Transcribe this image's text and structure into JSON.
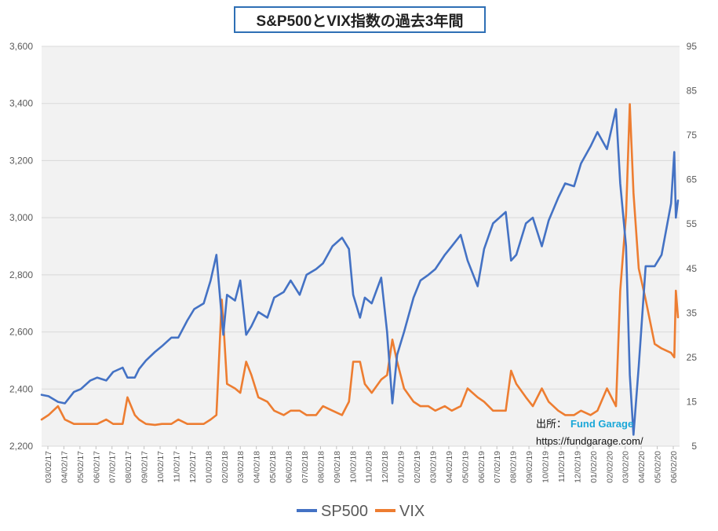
{
  "chart_data": {
    "type": "line",
    "title": "S&P500とVIX指数の過去3年間",
    "y_left": {
      "ylim": [
        2200,
        3600
      ],
      "ticks": [
        "2,200",
        "2,400",
        "2,600",
        "2,800",
        "3,000",
        "3,200",
        "3,400",
        "3,600"
      ]
    },
    "y_right": {
      "ylim": [
        5,
        95
      ],
      "ticks": [
        "5",
        "15",
        "25",
        "35",
        "45",
        "55",
        "65",
        "75",
        "85",
        "95"
      ]
    },
    "grid": true,
    "legend_position": "bottom",
    "x_tick_labels": [
      "03/02/17",
      "04/02/17",
      "05/02/17",
      "06/02/17",
      "07/02/17",
      "08/02/17",
      "09/02/17",
      "10/02/17",
      "11/02/17",
      "12/02/17",
      "01/02/18",
      "02/02/18",
      "03/02/18",
      "04/02/18",
      "05/02/18",
      "06/02/18",
      "07/02/18",
      "08/02/18",
      "09/02/18",
      "10/02/18",
      "11/02/18",
      "12/02/18",
      "01/02/19",
      "02/02/19",
      "03/02/19",
      "04/02/19",
      "05/02/19",
      "06/02/19",
      "07/02/19",
      "08/02/19",
      "09/02/19",
      "10/02/19",
      "11/02/19",
      "12/02/19",
      "01/02/20",
      "02/02/20",
      "03/02/20",
      "04/02/20",
      "05/02/20",
      "06/02/20"
    ],
    "x": [
      "2017-03-02",
      "2017-03-15",
      "2017-04-02",
      "2017-04-15",
      "2017-05-02",
      "2017-05-15",
      "2017-06-02",
      "2017-06-15",
      "2017-07-02",
      "2017-07-15",
      "2017-08-02",
      "2017-08-11",
      "2017-08-25",
      "2017-09-02",
      "2017-09-15",
      "2017-10-02",
      "2017-10-15",
      "2017-11-02",
      "2017-11-15",
      "2017-12-02",
      "2017-12-15",
      "2018-01-02",
      "2018-01-15",
      "2018-01-26",
      "2018-02-05",
      "2018-02-08",
      "2018-02-15",
      "2018-03-02",
      "2018-03-12",
      "2018-03-23",
      "2018-04-02",
      "2018-04-15",
      "2018-05-02",
      "2018-05-15",
      "2018-06-02",
      "2018-06-15",
      "2018-07-02",
      "2018-07-15",
      "2018-08-02",
      "2018-08-15",
      "2018-09-02",
      "2018-09-20",
      "2018-10-03",
      "2018-10-11",
      "2018-10-24",
      "2018-11-02",
      "2018-11-15",
      "2018-12-03",
      "2018-12-14",
      "2018-12-24",
      "2019-01-02",
      "2019-01-15",
      "2019-02-02",
      "2019-02-15",
      "2019-03-02",
      "2019-03-15",
      "2019-04-02",
      "2019-04-15",
      "2019-05-02",
      "2019-05-15",
      "2019-06-03",
      "2019-06-15",
      "2019-07-02",
      "2019-07-26",
      "2019-08-05",
      "2019-08-15",
      "2019-09-02",
      "2019-09-15",
      "2019-10-02",
      "2019-10-15",
      "2019-11-02",
      "2019-11-15",
      "2019-12-02",
      "2019-12-15",
      "2020-01-02",
      "2020-01-15",
      "2020-02-02",
      "2020-02-19",
      "2020-02-27",
      "2020-03-09",
      "2020-03-16",
      "2020-03-23",
      "2020-04-02",
      "2020-04-15",
      "2020-05-02",
      "2020-05-15",
      "2020-06-02",
      "2020-06-08",
      "2020-06-11",
      "2020-06-15"
    ],
    "series": [
      {
        "name": "SP500",
        "axis": "left",
        "color": "#4472c4",
        "values": [
          2380,
          2375,
          2355,
          2350,
          2390,
          2400,
          2430,
          2440,
          2430,
          2460,
          2475,
          2440,
          2440,
          2470,
          2500,
          2530,
          2550,
          2580,
          2580,
          2640,
          2680,
          2700,
          2780,
          2870,
          2650,
          2590,
          2730,
          2710,
          2780,
          2590,
          2620,
          2670,
          2650,
          2720,
          2740,
          2780,
          2730,
          2800,
          2820,
          2840,
          2900,
          2930,
          2890,
          2730,
          2650,
          2720,
          2700,
          2790,
          2600,
          2350,
          2520,
          2600,
          2720,
          2780,
          2800,
          2820,
          2870,
          2900,
          2940,
          2850,
          2760,
          2890,
          2980,
          3020,
          2850,
          2870,
          2980,
          3000,
          2900,
          2990,
          3070,
          3120,
          3110,
          3190,
          3250,
          3300,
          3240,
          3380,
          3120,
          2900,
          2450,
          2240,
          2480,
          2830,
          2830,
          2870,
          3050,
          3230,
          3000,
          3060
        ]
      },
      {
        "name": "VIX",
        "axis": "right",
        "color": "#ed7d31",
        "values": [
          11,
          12,
          14,
          11,
          10,
          10,
          10,
          10,
          11,
          10,
          10,
          16,
          12,
          11,
          10,
          9.8,
          10,
          10,
          11,
          10,
          10,
          10,
          11,
          12,
          38,
          33,
          19,
          18,
          17,
          24,
          21,
          16,
          15,
          13,
          12,
          13,
          13,
          12,
          12,
          14,
          13,
          12,
          15,
          24,
          24,
          19,
          17,
          20,
          21,
          29,
          24,
          18,
          15,
          14,
          14,
          13,
          14,
          13,
          14,
          18,
          16,
          15,
          13,
          13,
          22,
          19,
          16,
          14,
          18,
          15,
          13,
          12,
          12,
          13,
          12,
          13,
          18,
          14,
          40,
          57,
          82,
          62,
          45,
          38,
          28,
          27,
          26,
          25,
          40,
          34
        ]
      }
    ]
  },
  "source": {
    "label": "出所：",
    "brand": "Fund Garage",
    "url": "https://fundgarage.com/"
  }
}
